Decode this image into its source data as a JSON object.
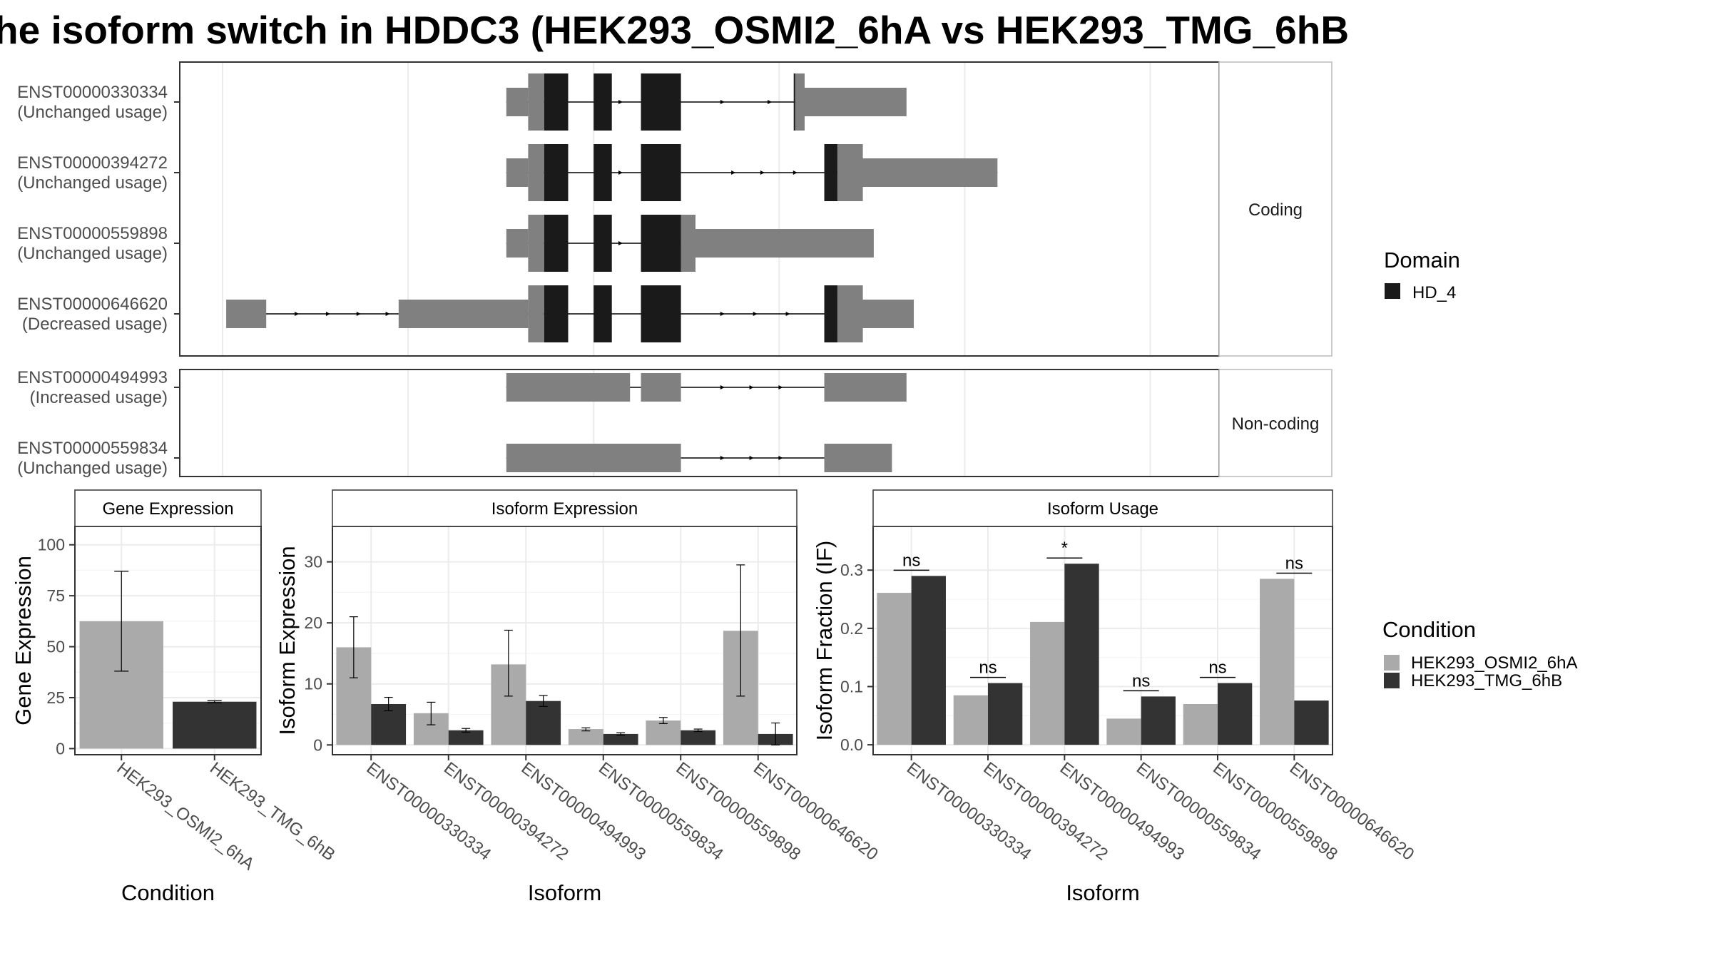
{
  "title": "he isoform switch in HDDC3 (HEK293_OSMI2_6hA vs HEK293_TMG_6hB",
  "colors": {
    "utr": "#808080",
    "domain": "#1a1a1a",
    "bar_a": "#aaaaaa",
    "bar_b": "#333333",
    "grid": "#ebebeb",
    "border": "#333333"
  },
  "legends": {
    "domain": {
      "title": "Domain",
      "items": [
        "HD_4"
      ]
    },
    "condition": {
      "title": "Condition",
      "items": [
        "HEK293_OSMI2_6hA",
        "HEK293_TMG_6hB"
      ]
    }
  },
  "transcripts": {
    "facets": [
      "Coding",
      "Non-coding"
    ],
    "coding": [
      {
        "id": "ENST00000330334",
        "status": "(Unchanged usage)"
      },
      {
        "id": "ENST00000394272",
        "status": "(Unchanged usage)"
      },
      {
        "id": "ENST00000559898",
        "status": "(Unchanged usage)"
      },
      {
        "id": "ENST00000646620",
        "status": "(Decreased usage)"
      }
    ],
    "noncoding": [
      {
        "id": "ENST00000494993",
        "status": "(Increased usage)"
      },
      {
        "id": "ENST00000559834",
        "status": "(Unchanged usage)"
      }
    ]
  },
  "chart_data": [
    {
      "type": "bar",
      "title": "Gene Expression",
      "xlabel": "Condition",
      "ylabel": "Gene Expression",
      "categories": [
        "HEK293_OSMI2_6hA",
        "HEK293_TMG_6hB"
      ],
      "values": [
        62.5,
        23
      ],
      "errors": [
        [
          38,
          87
        ],
        [
          22.5,
          23.5
        ]
      ],
      "ylim": [
        -3,
        109
      ],
      "yticks": [
        0,
        25,
        50,
        75,
        100
      ]
    },
    {
      "type": "bar",
      "title": "Isoform Expression",
      "xlabel": "Isoform",
      "ylabel": "Isoform Expression",
      "categories": [
        "ENST00000330334",
        "ENST00000394272",
        "ENST00000494993",
        "ENST00000559834",
        "ENST00000559898",
        "ENST00000646620"
      ],
      "series": [
        {
          "name": "HEK293_OSMI2_6hA",
          "values": [
            16,
            5.2,
            13.2,
            2.6,
            4,
            18.7
          ],
          "errors": [
            [
              11,
              21
            ],
            [
              3.3,
              7
            ],
            [
              8,
              18.8
            ],
            [
              2.3,
              2.8
            ],
            [
              3.5,
              4.5
            ],
            [
              8,
              29.5
            ]
          ]
        },
        {
          "name": "HEK293_TMG_6hB",
          "values": [
            6.7,
            2.4,
            7.2,
            1.8,
            2.4,
            1.8
          ],
          "errors": [
            [
              5.6,
              7.8
            ],
            [
              2.1,
              2.7
            ],
            [
              6.3,
              8.1
            ],
            [
              1.6,
              2.0
            ],
            [
              2.2,
              2.6
            ],
            [
              0,
              3.6
            ]
          ]
        }
      ],
      "ylim": [
        -1.6,
        35.8
      ],
      "yticks": [
        0,
        10,
        20,
        30
      ]
    },
    {
      "type": "bar",
      "title": "Isoform Usage",
      "xlabel": "Isoform",
      "ylabel": "Isoform Fraction (IF)",
      "categories": [
        "ENST00000330334",
        "ENST00000394272",
        "ENST00000494993",
        "ENST00000559834",
        "ENST00000559898",
        "ENST00000646620"
      ],
      "series": [
        {
          "name": "HEK293_OSMI2_6hA",
          "values": [
            0.261,
            0.085,
            0.211,
            0.045,
            0.07,
            0.285
          ]
        },
        {
          "name": "HEK293_TMG_6hB",
          "values": [
            0.29,
            0.106,
            0.311,
            0.083,
            0.106,
            0.076
          ]
        }
      ],
      "significance": [
        "ns",
        "ns",
        "*",
        "ns",
        "ns",
        "ns"
      ],
      "ylim": [
        -0.017,
        0.375
      ],
      "yticks": [
        0.0,
        0.1,
        0.2,
        0.3
      ],
      "ytick_labels": [
        "0.0",
        "0.1",
        "0.2",
        "0.3"
      ]
    }
  ]
}
